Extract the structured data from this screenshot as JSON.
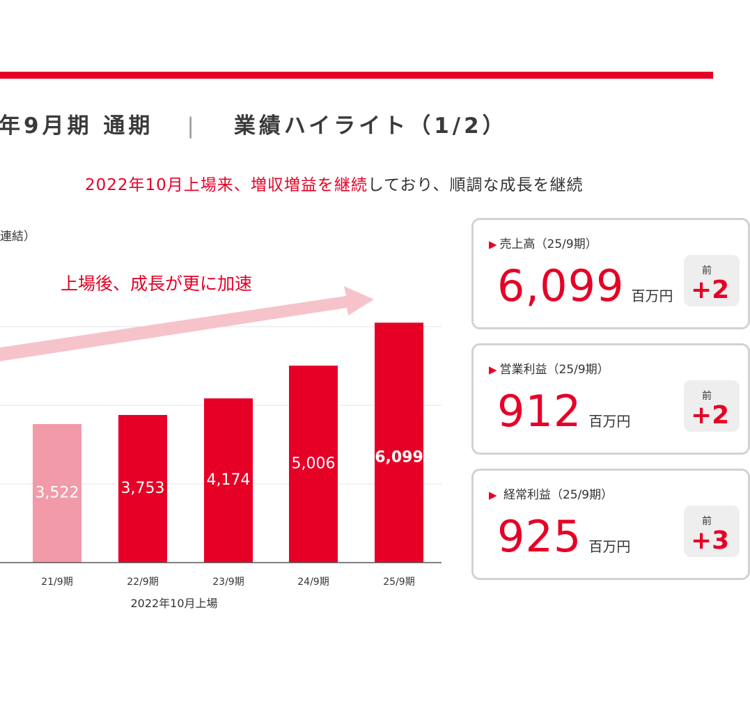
{
  "header": {
    "title_left": "年9月期 通期",
    "separator": "|",
    "title_right": "業績ハイライト（1/2）"
  },
  "subtitle": {
    "red_part1": "2022年10月上場来、",
    "red_part2": "増収増益を継続",
    "black_part": "しており、順調な成長を継続"
  },
  "chart_unit": "連結）",
  "chart_data": {
    "type": "bar",
    "categories": [
      "21/9期",
      "22/9期",
      "23/9期",
      "24/9期",
      "25/9期"
    ],
    "values": [
      3522,
      3753,
      4174,
      5006,
      6099
    ],
    "value_labels": [
      "3,522",
      "3,753",
      "4,174",
      "5,006",
      "6,099"
    ],
    "bar_colors": [
      "#f19aa8",
      "#e60026",
      "#e60026",
      "#e60026",
      "#e60026"
    ],
    "annotation": "上場後、成長が更に加速",
    "listing_note": "2022年10月上場"
  },
  "cards": [
    {
      "label": "売上高（25/9期）",
      "value": "6,099",
      "unit": "百万円",
      "yoy_label": "前",
      "yoy_value": "+2"
    },
    {
      "label": "営業利益（25/9期）",
      "value": "912",
      "unit": "百万円",
      "yoy_label": "前",
      "yoy_value": "+2"
    },
    {
      "label": " 経常利益（25/9期）",
      "value": "925",
      "unit": "百万円",
      "yoy_label": "前",
      "yoy_value": "+3"
    }
  ],
  "colors": {
    "accent": "#e60026",
    "muted_bar": "#f19aa8",
    "arrow": "#f6c3cb"
  }
}
